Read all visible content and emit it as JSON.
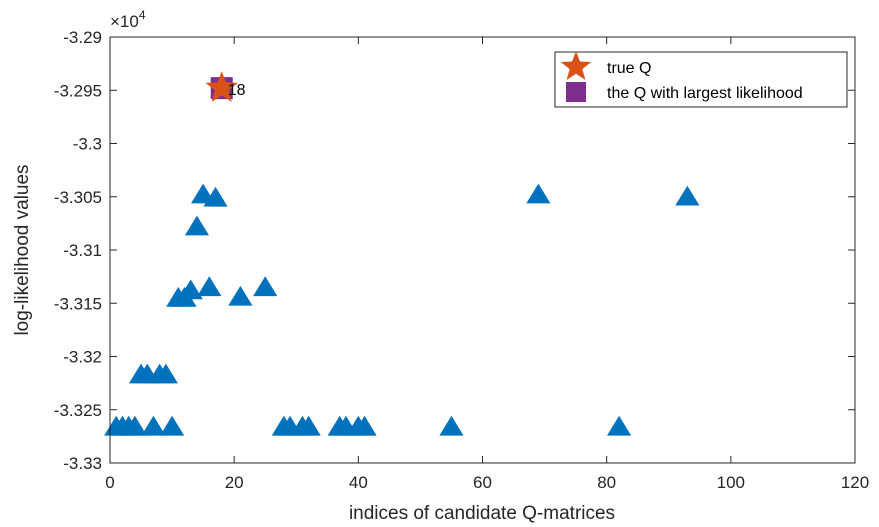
{
  "chart_data": {
    "type": "scatter",
    "title": "",
    "xlabel": "indices of candidate Q-matrices",
    "ylabel": "log-likelihood values",
    "exponent_label": "×10",
    "exponent_power": "4",
    "xlim": [
      0,
      120
    ],
    "ylim": [
      -3.33,
      -3.29
    ],
    "xticks": [
      0,
      20,
      40,
      60,
      80,
      100,
      120
    ],
    "xtick_labels": [
      "0",
      "20",
      "40",
      "60",
      "80",
      "100",
      "120"
    ],
    "yticks": [
      -3.33,
      -3.325,
      -3.32,
      -3.315,
      -3.31,
      -3.305,
      -3.3,
      -3.295,
      -3.29
    ],
    "ytick_labels": [
      "-3.33",
      "-3.325",
      "-3.32",
      "-3.315",
      "-3.31",
      "-3.305",
      "-3.3",
      "-3.295",
      "-3.29"
    ],
    "grid": false,
    "legend_position": "top-right",
    "series": [
      {
        "kind": "candidates",
        "marker": "triangle",
        "color": "#0072BD",
        "points": [
          [
            1,
            -3.3266
          ],
          [
            2,
            -3.3266
          ],
          [
            3,
            -3.3266
          ],
          [
            4,
            -3.3266
          ],
          [
            5,
            -3.3217
          ],
          [
            6,
            -3.3217
          ],
          [
            7,
            -3.3266
          ],
          [
            8,
            -3.3217
          ],
          [
            9,
            -3.3217
          ],
          [
            10,
            -3.3266
          ],
          [
            11,
            -3.3145
          ],
          [
            12,
            -3.3145
          ],
          [
            13,
            -3.3138
          ],
          [
            14,
            -3.3078
          ],
          [
            15,
            -3.3048
          ],
          [
            16,
            -3.3135
          ],
          [
            17,
            -3.3051
          ],
          [
            21,
            -3.3144
          ],
          [
            25,
            -3.3135
          ],
          [
            28,
            -3.3266
          ],
          [
            29,
            -3.3266
          ],
          [
            31,
            -3.3266
          ],
          [
            32,
            -3.3266
          ],
          [
            37,
            -3.3266
          ],
          [
            38,
            -3.3266
          ],
          [
            40,
            -3.3266
          ],
          [
            41,
            -3.3266
          ],
          [
            55,
            -3.3266
          ],
          [
            69,
            -3.3048
          ],
          [
            82,
            -3.3266
          ],
          [
            93,
            -3.305
          ]
        ]
      },
      {
        "kind": "largest",
        "name": "the Q with largest likelihood",
        "marker": "square",
        "color": "#7E2F8E",
        "points": [
          [
            18,
            -3.2948
          ]
        ]
      },
      {
        "kind": "true",
        "name": "true Q",
        "marker": "star",
        "color": "#D95319",
        "points": [
          [
            18,
            -3.2948
          ]
        ]
      }
    ],
    "annotations": [
      {
        "text": "18",
        "x": 18,
        "y": -3.2948
      }
    ],
    "legend": [
      "true Q",
      "the Q with largest likelihood"
    ]
  }
}
